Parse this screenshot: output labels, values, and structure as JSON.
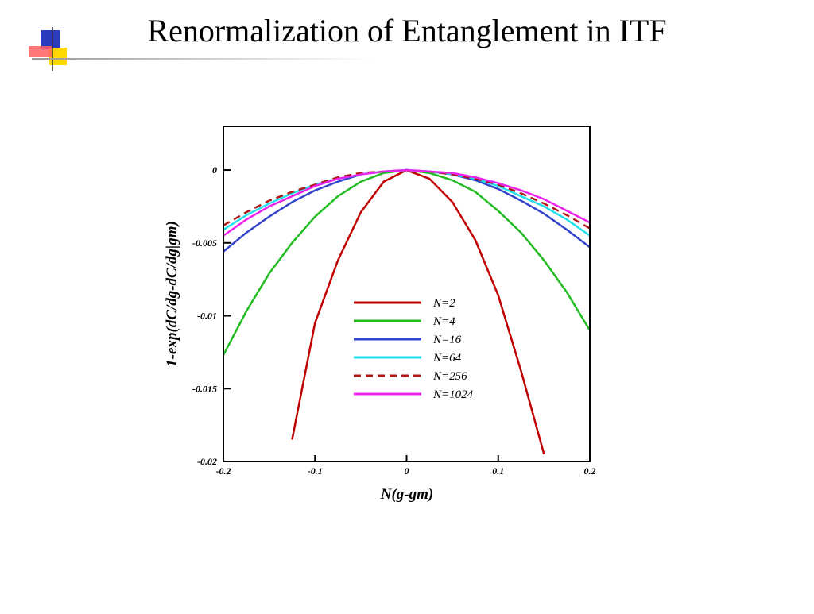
{
  "title": "Renormalization of Entanglement in ITF",
  "chart_data": {
    "type": "line",
    "xlabel": "N(g-gm)",
    "ylabel": "1-exp(dC/dg-dC/dg|gm)",
    "xlim": [
      -0.2,
      0.2
    ],
    "ylim": [
      -0.02,
      0.003
    ],
    "xticks": [
      -0.2,
      -0.1,
      0,
      0.1,
      0.2
    ],
    "yticks": [
      0,
      -0.005,
      -0.01,
      -0.015,
      -0.02
    ],
    "x": [
      -0.2,
      -0.175,
      -0.15,
      -0.125,
      -0.1,
      -0.075,
      -0.05,
      -0.025,
      0,
      0.025,
      0.05,
      0.075,
      0.1,
      0.125,
      0.15,
      0.175,
      0.2
    ],
    "series": [
      {
        "name": "N=2",
        "color": "#c00000",
        "dashed": false,
        "values": [
          null,
          null,
          null,
          -0.0185,
          -0.0105,
          -0.0062,
          -0.0029,
          -0.0008,
          0,
          -0.0006,
          -0.0022,
          -0.0048,
          -0.0086,
          -0.0138,
          -0.0195,
          null,
          null
        ]
      },
      {
        "name": "N=4",
        "color": "#22bb22",
        "dashed": false,
        "values": [
          -0.0127,
          -0.0097,
          -0.0071,
          -0.005,
          -0.0032,
          -0.0018,
          -0.0008,
          -0.0002,
          0,
          -0.0002,
          -0.0007,
          -0.0015,
          -0.0028,
          -0.0043,
          -0.0062,
          -0.0084,
          -0.011
        ]
      },
      {
        "name": "N=16",
        "color": "#3344cc",
        "dashed": false,
        "values": [
          -0.0056,
          -0.0043,
          -0.0032,
          -0.0022,
          -0.0014,
          -0.0008,
          -0.0003,
          -0.0001,
          0,
          -0.0001,
          -0.0003,
          -0.0007,
          -0.0013,
          -0.0021,
          -0.003,
          -0.0041,
          -0.0053
        ]
      },
      {
        "name": "N=64",
        "color": "#22e0ee",
        "dashed": false,
        "values": [
          -0.0041,
          -0.0031,
          -0.0023,
          -0.0016,
          -0.001,
          -0.0006,
          -0.0003,
          -0.0001,
          0,
          -0.0001,
          -0.0003,
          -0.0006,
          -0.0011,
          -0.0018,
          -0.0025,
          -0.0034,
          -0.0045
        ]
      },
      {
        "name": "N=256",
        "color": "#b01818",
        "dashed": true,
        "values": [
          -0.0038,
          -0.0029,
          -0.0021,
          -0.0015,
          -0.001,
          -0.0005,
          -0.0002,
          -0.0001,
          0,
          -0.0001,
          -0.0003,
          -0.0006,
          -0.001,
          -0.0016,
          -0.0023,
          -0.0031,
          -0.004
        ]
      },
      {
        "name": "N=1024",
        "color": "#ee22ee",
        "dashed": false,
        "values": [
          -0.0045,
          -0.0034,
          -0.0025,
          -0.0018,
          -0.0011,
          -0.0006,
          -0.0003,
          -0.0001,
          0,
          -0.0001,
          -0.0002,
          -0.0005,
          -0.0009,
          -0.0014,
          -0.002,
          -0.0028,
          -0.0036
        ]
      }
    ]
  }
}
